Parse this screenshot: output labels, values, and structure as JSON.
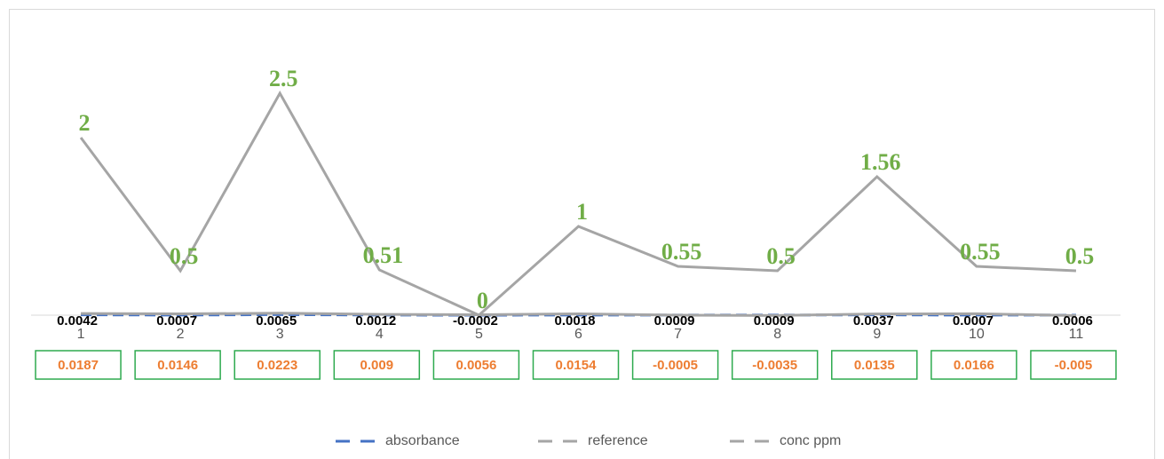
{
  "chart_data": {
    "type": "line",
    "categories": [
      "1",
      "2",
      "3",
      "4",
      "5",
      "6",
      "7",
      "8",
      "9",
      "10",
      "11"
    ],
    "series": [
      {
        "name": "absorbance",
        "color": "#4472c4",
        "dash": true,
        "label_color": "#000000",
        "values": [
          0.0042,
          0.0007,
          0.0065,
          0.0012,
          -0.0002,
          0.0018,
          0.0009,
          0.0009,
          0.0037,
          0.0007,
          0.0006
        ]
      },
      {
        "name": "reference",
        "color": "#a5a5a5",
        "dash": false,
        "label_color": "#ed7d31",
        "values": [
          0.0187,
          0.0146,
          0.0223,
          0.009,
          0.0056,
          0.0154,
          -0.0005,
          -0.0035,
          0.0135,
          0.0166,
          -0.005
        ]
      },
      {
        "name": "conc ppm",
        "color": "#a5a5a5",
        "dash": false,
        "label_color": "#70ad47",
        "values": [
          2,
          0.5,
          2.5,
          0.51,
          0,
          1,
          0.55,
          0.5,
          1.56,
          0.55,
          0.5
        ]
      }
    ],
    "legend": "bottom"
  }
}
